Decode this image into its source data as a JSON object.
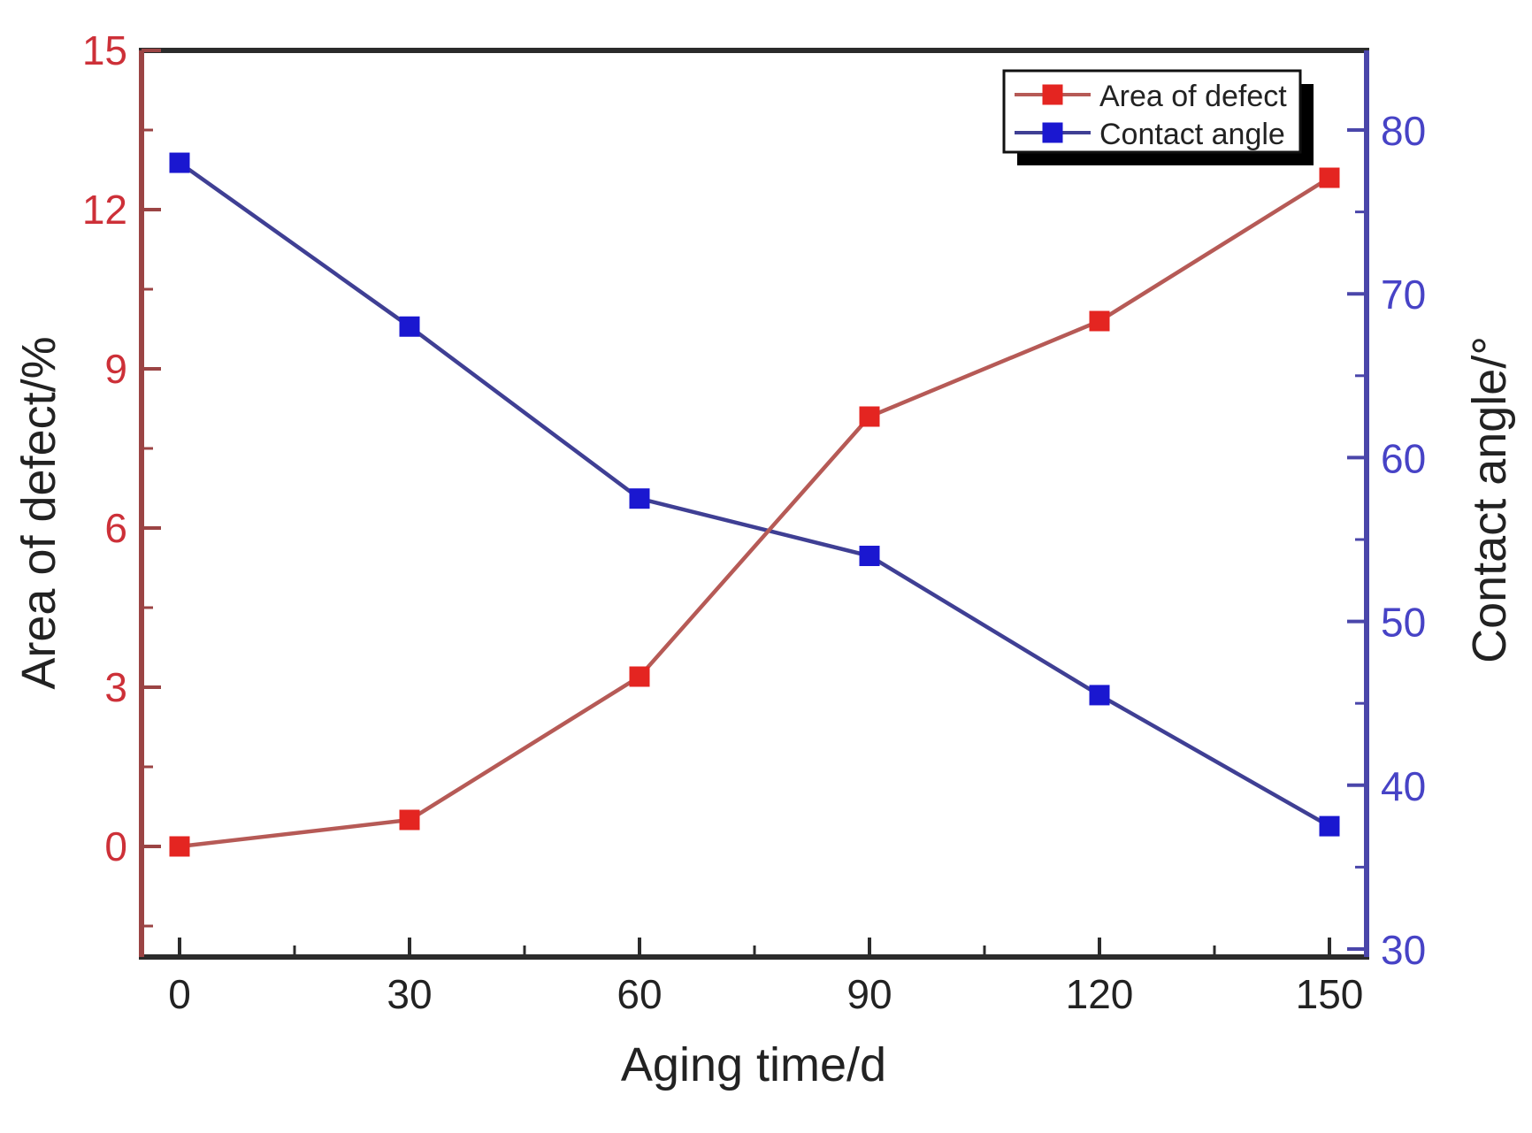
{
  "chart_data": {
    "type": "line",
    "title": "",
    "x": [
      0,
      30,
      60,
      90,
      120,
      150
    ],
    "xlabel": "Aging time/d",
    "x_ticks_major": [
      0,
      30,
      60,
      90,
      120,
      150
    ],
    "x_ticks_minor": [
      15,
      45,
      75,
      105,
      135
    ],
    "series": [
      {
        "name": "Area of defect",
        "axis": "left",
        "marker": "square",
        "line_color": "#b65a56",
        "marker_color": "#e42521",
        "values": [
          0.0,
          0.5,
          3.2,
          8.1,
          9.9,
          12.6
        ]
      },
      {
        "name": "Contact angle",
        "axis": "right",
        "marker": "square",
        "line_color": "#3f3f94",
        "marker_color": "#1a17d0",
        "values": [
          78,
          68,
          57.5,
          54,
          45.5,
          37.5
        ]
      }
    ],
    "left_axis": {
      "label": "Area of defect/%",
      "ticks": [
        0,
        3,
        6,
        9,
        12,
        15
      ],
      "minor_ticks": [
        -1.5,
        1.5,
        4.5,
        7.5,
        10.5,
        13.5
      ],
      "range": [
        -2.1,
        15
      ],
      "axis_color": "#9b4444",
      "text_color": "#cd3038"
    },
    "right_axis": {
      "label": "Contact angle/°",
      "ticks": [
        30,
        40,
        50,
        60,
        70,
        80
      ],
      "minor_ticks": [
        35,
        45,
        55,
        65,
        75
      ],
      "range": [
        29.5,
        84.9
      ],
      "axis_color": "#4a46aa",
      "text_color": "#4743c6"
    },
    "legend": {
      "position": "top-right",
      "entries": [
        "Area of defect",
        "Contact angle"
      ],
      "background": "#ffffff",
      "border_color": "#111111",
      "shadow_color": "#000000"
    },
    "grid": false,
    "background": "#ffffff",
    "frame_color": "#2b2b2b",
    "text_color": "#222222"
  }
}
